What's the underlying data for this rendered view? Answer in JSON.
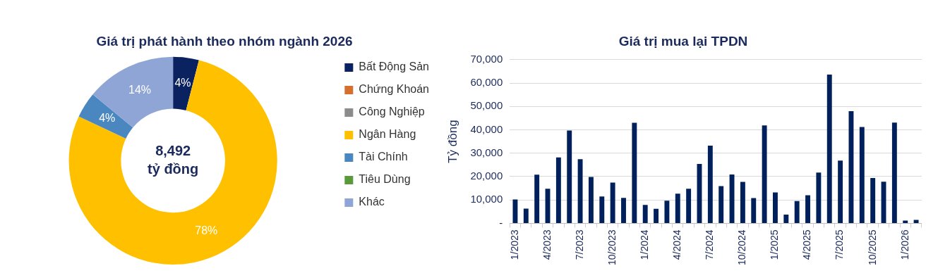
{
  "chart_data": [
    {
      "type": "donut",
      "title": "Giá trị phát hành theo nhóm ngành 2026",
      "categories": [
        "Bất Động Sản",
        "Chứng Khoán",
        "Công Nghiệp",
        "Ngân Hàng",
        "Tài Chính",
        "Tiêu Dùng",
        "Khác"
      ],
      "values": [
        4,
        0,
        0,
        78,
        4,
        0,
        14
      ],
      "colors": [
        "#0b2260",
        "#d46f2d",
        "#8c8c8c",
        "#ffc000",
        "#4a86c0",
        "#5a9a3a",
        "#8fa5d5"
      ],
      "value_labels": [
        "4%",
        null,
        null,
        "78%",
        "4%",
        null,
        "14%"
      ],
      "annotations": [
        "8,492",
        "tỷ đồng"
      ],
      "legend": "right"
    },
    {
      "type": "bar",
      "title": "Giá trị mua lại TPDN",
      "ylabel": "Tỷ đồng",
      "categories": [
        "1/2023",
        null,
        null,
        "4/2023",
        null,
        null,
        "7/2023",
        null,
        null,
        "10/2023",
        null,
        null,
        "1/2024",
        null,
        null,
        "4/2024",
        null,
        null,
        "7/2024",
        null,
        null,
        "10/2024",
        null,
        null,
        "1/2025",
        null,
        null,
        "4/2025",
        null,
        null,
        "7/2025",
        null,
        null,
        "10/2025",
        null,
        null,
        "1/2026",
        null
      ],
      "values": [
        10200,
        6300,
        20800,
        14800,
        28200,
        39700,
        27400,
        19800,
        11500,
        17400,
        10900,
        43000,
        7900,
        6200,
        9700,
        12700,
        14800,
        25400,
        33200,
        15900,
        20900,
        17700,
        10800,
        41900,
        13200,
        3700,
        9500,
        12000,
        21700,
        63600,
        26800,
        48000,
        41200,
        19400,
        17800,
        43100,
        1200,
        1500
      ],
      "color": "#00205b",
      "ylim": [
        0,
        70000
      ],
      "yticks": [
        {
          "value": 0,
          "label": "-"
        },
        {
          "value": 10000,
          "label": "10,000"
        },
        {
          "value": 20000,
          "label": "20,000"
        },
        {
          "value": 30000,
          "label": "30,000"
        },
        {
          "value": 40000,
          "label": "40,000"
        },
        {
          "value": 50000,
          "label": "50,000"
        },
        {
          "value": 60000,
          "label": "60,000"
        },
        {
          "value": 70000,
          "label": "70,000"
        }
      ],
      "grid": "y",
      "legend": false
    }
  ]
}
